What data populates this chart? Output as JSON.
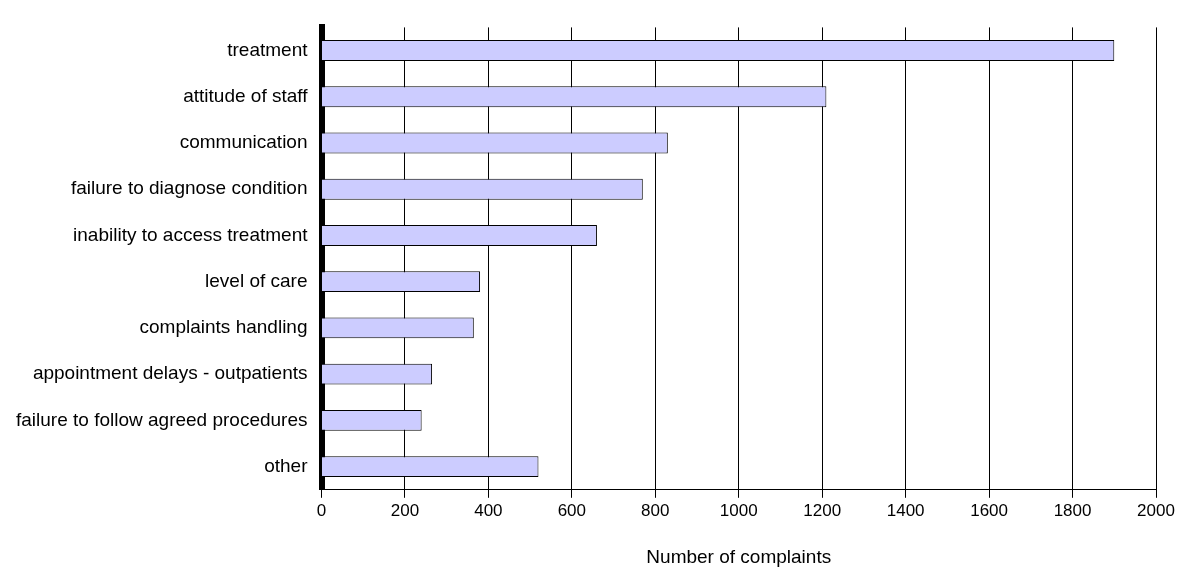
{
  "chart_data": {
    "type": "bar",
    "orientation": "horizontal",
    "xlabel": "Number of complaints",
    "categories": [
      "treatment",
      "attitude of staff",
      "communication",
      "failure to diagnose condition",
      "inability to access treatment",
      "level of care",
      "complaints handling",
      "appointment delays - outpatients",
      "failure to follow agreed procedures",
      "other"
    ],
    "values": [
      1900,
      1210,
      830,
      770,
      660,
      380,
      365,
      265,
      240,
      520
    ],
    "color": "#ccccff",
    "xlim": [
      0,
      2000
    ],
    "xticks": [
      0,
      200,
      400,
      600,
      800,
      1000,
      1200,
      1400,
      1600,
      1800,
      2000
    ],
    "grid": "x",
    "legend": false
  }
}
